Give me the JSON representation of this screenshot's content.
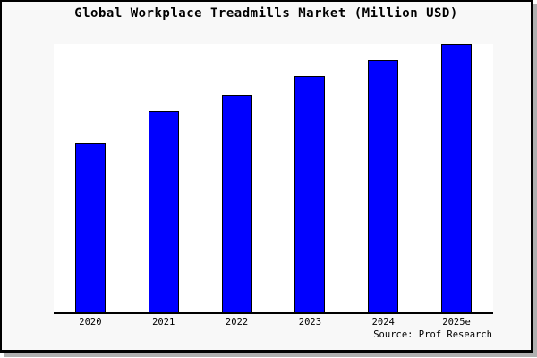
{
  "window": {
    "background": "#f8f8f8",
    "border_color": "#000000",
    "shadow_color": "#b0b0b0"
  },
  "footer": {
    "source": "Source: Prof Research"
  },
  "chart_data": {
    "type": "bar",
    "title": "Global Workplace Treadmills Market (Million USD)",
    "categories": [
      "2020",
      "2021",
      "2022",
      "2023",
      "2024",
      "2025e"
    ],
    "values": [
      63,
      75,
      81,
      88,
      94,
      100
    ],
    "value_note": "No y-axis tick labels or gridlines are shown; values are relative bar heights normalized to 2025e = 100.",
    "xlabel": "",
    "ylabel": "",
    "ylim": [
      0,
      100
    ],
    "grid": false,
    "legend": false,
    "bar_color": "#0000ff",
    "bar_border_color": "#000000",
    "plot_background": "#ffffff",
    "axis_color": "#000000"
  }
}
